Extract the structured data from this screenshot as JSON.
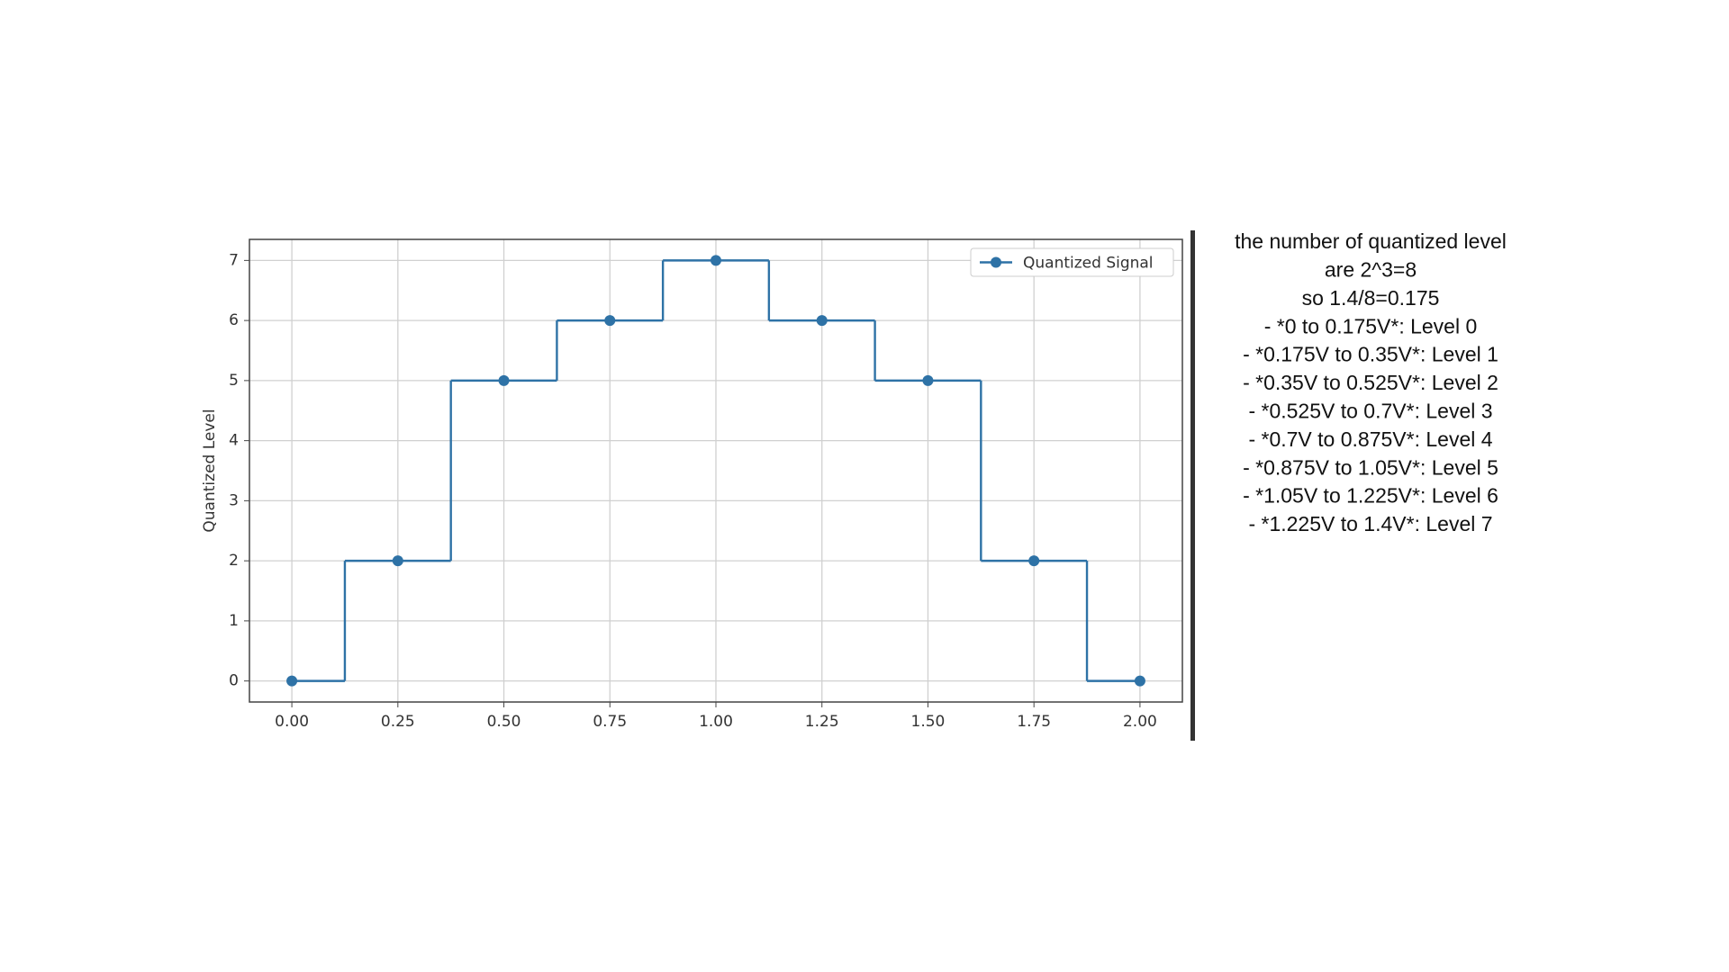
{
  "chart_data": {
    "type": "line",
    "step": "mid",
    "y_label": "Quantized Level",
    "x": [
      0,
      0.25,
      0.5,
      0.75,
      1.0,
      1.25,
      1.5,
      1.75,
      2.0
    ],
    "series": [
      {
        "name": "Quantized Signal",
        "color": "#2e72a6",
        "values": [
          0,
          2,
          5,
          6,
          7,
          6,
          5,
          2,
          0
        ]
      }
    ],
    "xlim": [
      -0.1,
      2.1
    ],
    "xticks": [
      {
        "value": 0,
        "label": "0.00"
      },
      {
        "value": 0.25,
        "label": "0.25"
      },
      {
        "value": 0.5,
        "label": "0.50"
      },
      {
        "value": 0.75,
        "label": "0.75"
      },
      {
        "value": 1,
        "label": "1.00"
      },
      {
        "value": 1.25,
        "label": "1.25"
      },
      {
        "value": 1.5,
        "label": "1.50"
      },
      {
        "value": 1.75,
        "label": "1.75"
      },
      {
        "value": 2,
        "label": "2.00"
      }
    ],
    "ylim": [
      -0.35,
      7.35
    ],
    "yticks": [
      0,
      1,
      2,
      3,
      4,
      5,
      6,
      7
    ],
    "grid": true,
    "legend": "upper right"
  },
  "notes": [
    "the number of quantized level",
    "are 2^3=8",
    "so 1.4/8=0.175",
    "- *0 to 0.175V*: Level 0",
    "- *0.175V to 0.35V*: Level 1",
    "- *0.35V to 0.525V*: Level 2",
    "- *0.525V to 0.7V*: Level 3",
    "- *0.7V to 0.875V*: Level 4",
    "- *0.875V to 1.05V*: Level 5",
    "- *1.05V to 1.225V*: Level 6",
    "- *1.225V to 1.4V*: Level 7"
  ]
}
